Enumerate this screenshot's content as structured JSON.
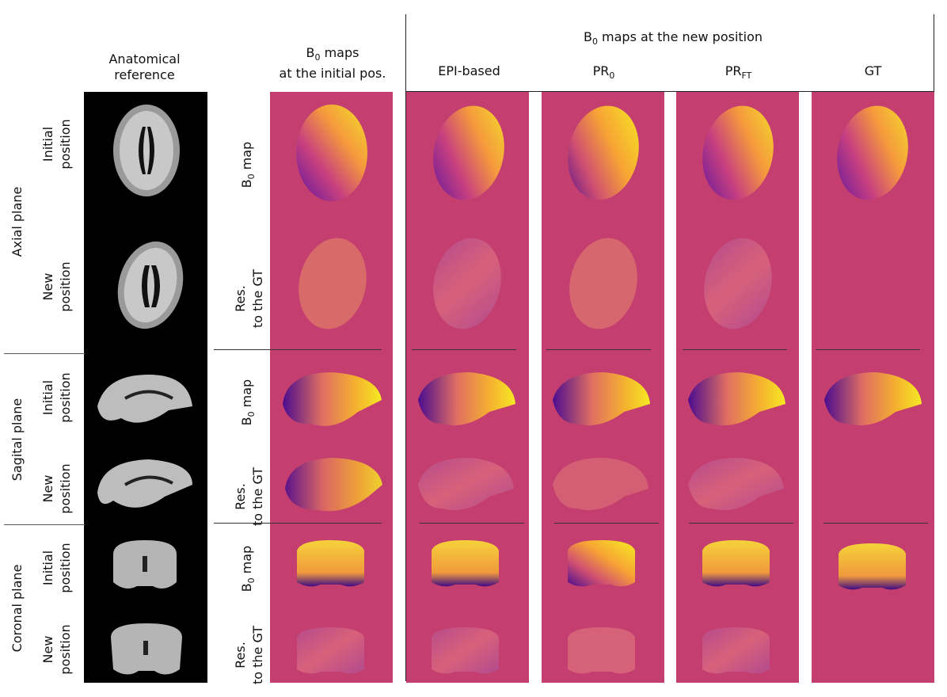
{
  "headers": {
    "anatomical": "Anatomical reference",
    "initial_maps": "B0 maps at the initial pos.",
    "new_position_group": "B0 maps at the new position",
    "columns": [
      "EPI-based",
      "PR0",
      "PRFT",
      "GT"
    ]
  },
  "planes": [
    "Axial plane",
    "Sagital plane",
    "Coronal plane"
  ],
  "position_labels": {
    "initial": "Initial position",
    "new": "New position"
  },
  "row_labels": {
    "b0": "B0 map",
    "res": "Res. to the GT"
  },
  "colors": {
    "background_panel": "#c43f6f",
    "plasma_low": "#3b0f70",
    "plasma_mid": "#e56b5d",
    "plasma_high": "#f0f921"
  }
}
